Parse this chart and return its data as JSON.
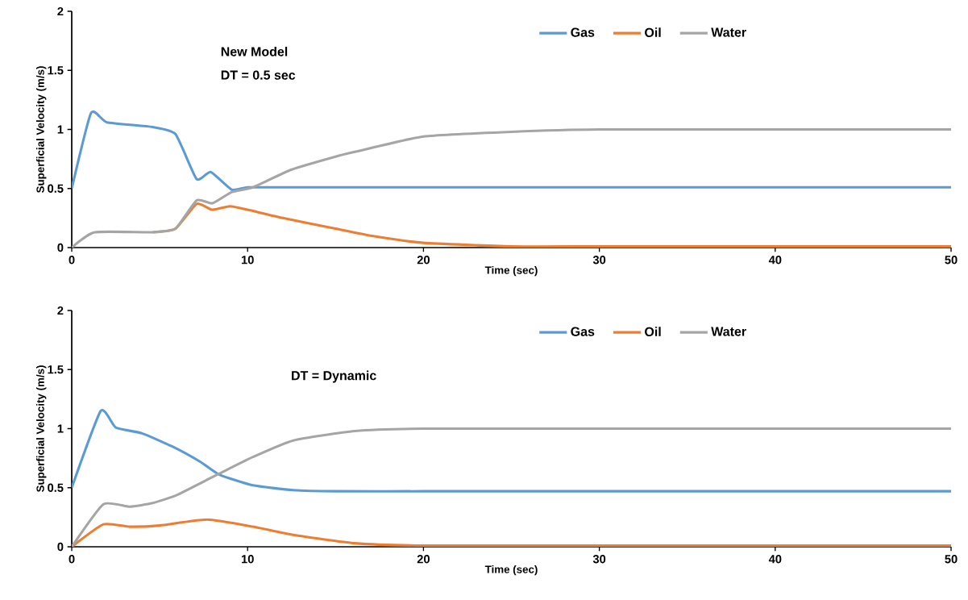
{
  "chart_data": [
    {
      "type": "line",
      "xlabel": "Time (sec)",
      "ylabel": "Superficial Velocity (m/s)",
      "annotations": [
        "New Model",
        "DT = 0.5 sec"
      ],
      "xlim": [
        0,
        50
      ],
      "ylim": [
        0,
        2
      ],
      "xticks": [
        0,
        10,
        20,
        30,
        40,
        50
      ],
      "yticks": [
        0,
        0.5,
        1,
        1.5,
        2
      ],
      "legend": "top",
      "line_style": "solid",
      "series": [
        {
          "name": "Gas",
          "color": "#5b9bd5",
          "x": [
            0,
            1.1,
            2,
            4.6,
            5.9,
            7.1,
            7.9,
            9.1,
            10,
            12,
            20,
            30,
            40,
            50
          ],
          "values": [
            0.5,
            1.14,
            1.06,
            1.02,
            0.96,
            0.58,
            0.64,
            0.49,
            0.51,
            0.51,
            0.51,
            0.51,
            0.51,
            0.51
          ]
        },
        {
          "name": "Oil",
          "color": "#ed7d31",
          "x": [
            4.6,
            5.9,
            7.1,
            8,
            9,
            10,
            12,
            15,
            17,
            20,
            25,
            30,
            40,
            50
          ],
          "values": [
            0.13,
            0.16,
            0.37,
            0.32,
            0.35,
            0.32,
            0.25,
            0.16,
            0.1,
            0.04,
            0.01,
            0.01,
            0.01,
            0.01
          ]
        },
        {
          "name": "Water",
          "color": "#a5a5a5",
          "x": [
            0,
            1.3,
            4.6,
            5.9,
            7.1,
            8,
            9.1,
            10.3,
            12.5,
            15,
            16.1,
            20,
            25,
            30,
            40,
            50
          ],
          "values": [
            0,
            0.13,
            0.13,
            0.16,
            0.4,
            0.375,
            0.47,
            0.51,
            0.66,
            0.77,
            0.81,
            0.94,
            0.98,
            1,
            1,
            1
          ]
        }
      ]
    },
    {
      "type": "line",
      "xlabel": "Time (sec)",
      "ylabel": "Superficial Velocity (m/s)",
      "annotations": [
        "DT = Dynamic"
      ],
      "xlim": [
        0,
        50
      ],
      "ylim": [
        0,
        2
      ],
      "xticks": [
        0,
        10,
        20,
        30,
        40,
        50
      ],
      "yticks": [
        0,
        0.5,
        1,
        1.5,
        2
      ],
      "legend": "top",
      "line_style": "solid",
      "series": [
        {
          "name": "Gas",
          "color": "#5b9bd5",
          "x": [
            0,
            1.65,
            2.5,
            4,
            5.7,
            7.3,
            8.4,
            10.3,
            12.6,
            15,
            20,
            30,
            40,
            50
          ],
          "values": [
            0.5,
            1.15,
            1.01,
            0.96,
            0.85,
            0.72,
            0.61,
            0.52,
            0.48,
            0.47,
            0.47,
            0.47,
            0.47,
            0.47
          ]
        },
        {
          "name": "Oil",
          "color": "#ed7d31",
          "x": [
            0,
            1.8,
            3.3,
            5,
            7.7,
            10.3,
            12.6,
            16.1,
            20,
            30,
            40,
            50
          ],
          "values": [
            0,
            0.19,
            0.17,
            0.18,
            0.23,
            0.17,
            0.1,
            0.03,
            0.01,
            0.01,
            0.01,
            0.01
          ]
        },
        {
          "name": "Water",
          "color": "#a5a5a5",
          "x": [
            0,
            1.8,
            3.3,
            4.6,
            6,
            8.4,
            10.3,
            12.6,
            16.1,
            20,
            30,
            40,
            50
          ],
          "values": [
            0,
            0.36,
            0.34,
            0.37,
            0.44,
            0.62,
            0.76,
            0.9,
            0.98,
            1,
            1,
            1,
            1
          ]
        }
      ]
    }
  ]
}
